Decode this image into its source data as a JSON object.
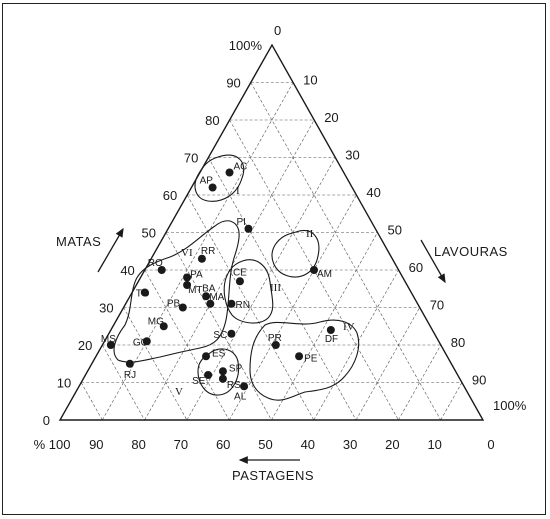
{
  "chart_data": {
    "type": "scatter",
    "chart_kind": "ternary",
    "axes": {
      "left": {
        "label": "MATAS",
        "ticks": [
          "0",
          "10",
          "20",
          "30",
          "40",
          "50",
          "60",
          "70",
          "80",
          "90",
          "100%"
        ]
      },
      "right": {
        "label": "LAVOURAS",
        "ticks": [
          "0",
          "10",
          "20",
          "30",
          "40",
          "50",
          "60",
          "70",
          "80",
          "90",
          "100%"
        ]
      },
      "bottom": {
        "label": "PASTAGENS",
        "ticks": [
          "% 100",
          "90",
          "80",
          "70",
          "60",
          "50",
          "40",
          "30",
          "20",
          "10",
          "0"
        ]
      }
    },
    "grid": true,
    "points": [
      {
        "label": "AC",
        "matas": 66,
        "lavouras": 7
      },
      {
        "label": "AP",
        "matas": 62,
        "lavouras": 5
      },
      {
        "label": "PI",
        "matas": 51,
        "lavouras": 19
      },
      {
        "label": "RR",
        "matas": 43,
        "lavouras": 12
      },
      {
        "label": "AM",
        "matas": 40,
        "lavouras": 40
      },
      {
        "label": "RO",
        "matas": 40,
        "lavouras": 4
      },
      {
        "label": "PA",
        "matas": 38,
        "lavouras": 11
      },
      {
        "label": "CE",
        "matas": 37,
        "lavouras": 24
      },
      {
        "label": "TO",
        "matas": 34,
        "lavouras": 3
      },
      {
        "label": "MT",
        "matas": 36,
        "lavouras": 12
      },
      {
        "label": "BA",
        "matas": 33,
        "lavouras": 18
      },
      {
        "label": "MA",
        "matas": 31,
        "lavouras": 20
      },
      {
        "label": "RN",
        "matas": 31,
        "lavouras": 25
      },
      {
        "label": "PB",
        "matas": 30,
        "lavouras": 14
      },
      {
        "label": "MG",
        "matas": 25,
        "lavouras": 12
      },
      {
        "label": "GO",
        "matas": 21,
        "lavouras": 10
      },
      {
        "label": "MS",
        "matas": 20,
        "lavouras": 2
      },
      {
        "label": "SC",
        "matas": 23,
        "lavouras": 29
      },
      {
        "label": "DF",
        "matas": 24,
        "lavouras": 52
      },
      {
        "label": "PR",
        "matas": 20,
        "lavouras": 41
      },
      {
        "label": "PE",
        "matas": 17,
        "lavouras": 48
      },
      {
        "label": "ES",
        "matas": 17,
        "lavouras": 26
      },
      {
        "label": "RJ",
        "matas": 15,
        "lavouras": 9
      },
      {
        "label": "SP",
        "matas": 13,
        "lavouras": 32
      },
      {
        "label": "SE",
        "matas": 12,
        "lavouras": 29
      },
      {
        "label": "RS",
        "matas": 11,
        "lavouras": 33
      },
      {
        "label": "AL",
        "matas": 9,
        "lavouras": 39
      }
    ],
    "groups": [
      {
        "label": "I",
        "members": [
          "AC",
          "AP"
        ]
      },
      {
        "label": "II",
        "members": [
          "AM"
        ]
      },
      {
        "label": "III",
        "members": [
          "CE",
          "BA",
          "MA",
          "RN"
        ]
      },
      {
        "label": "IV",
        "members": [
          "SC",
          "DF",
          "PR",
          "PE",
          "ES",
          "SP",
          "SE",
          "RS",
          "AL"
        ]
      },
      {
        "label": "V",
        "members": [
          "RJ"
        ]
      },
      {
        "label": "VI",
        "members": [
          "PI",
          "RR",
          "RO",
          "PA",
          "TO",
          "MT",
          "PB",
          "MG",
          "GO",
          "MS"
        ]
      }
    ]
  },
  "colors": {
    "ink": "#1a1a1a",
    "grid": "#555555",
    "background": "#ffffff"
  }
}
